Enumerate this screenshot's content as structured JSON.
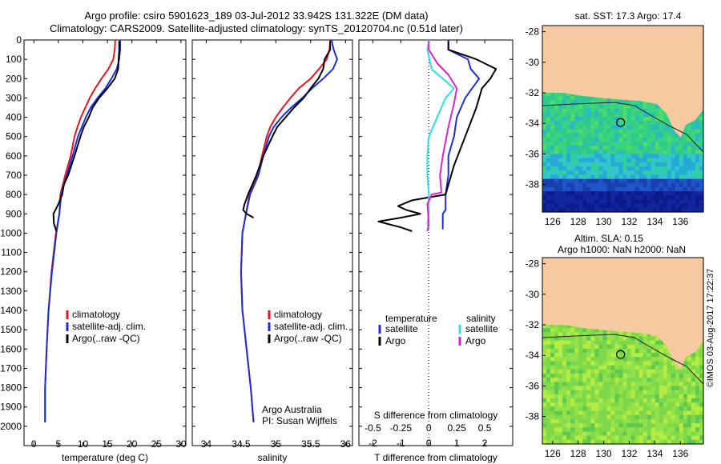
{
  "header": {
    "line1": "Argo profile: csiro 5901623_189 03-Jul-2012 33.942S 131.322E (DM data)",
    "line2": "Climatology: CARS2009. Satellite-adjusted climatology: synTS_20120704.nc (0.51d later)"
  },
  "side_label": "©IMOS 03-Aug-2017 17:22:37",
  "colors": {
    "climatology": "#e8141e",
    "satellite": "#1c2fd8",
    "argo": "#000000",
    "s_satellite": "#29e0e6",
    "s_argo": "#e020d0",
    "land": "#f7c9a0"
  },
  "maps": [
    {
      "title": "sat. SST: 17.3 Argo: 17.4",
      "colormap": "sst",
      "yticks": [
        "-28",
        "-30",
        "-32",
        "-34",
        "-36",
        "-38"
      ],
      "xticks": [
        "126",
        "128",
        "130",
        "132",
        "134",
        "136"
      ]
    },
    {
      "title": "Altim. SLA: 0.15",
      "title2": "Argo h1000: NaN h2000: NaN",
      "colormap": "sla",
      "yticks": [
        "-28",
        "-30",
        "-32",
        "-34",
        "-36",
        "-38"
      ],
      "xticks": [
        "126",
        "128",
        "130",
        "132",
        "134",
        "136"
      ]
    }
  ],
  "chart_data": [
    {
      "type": "line",
      "xlabel": "temperature (deg C)",
      "ylabel": "",
      "xlim": [
        -2,
        31
      ],
      "ylim": [
        0,
        2100
      ],
      "xticks": [
        "0",
        "5",
        "10",
        "15",
        "20",
        "25",
        "30"
      ],
      "yticks": [
        "0",
        "100",
        "200",
        "300",
        "400",
        "500",
        "600",
        "700",
        "800",
        "900",
        "1000",
        "1100",
        "1200",
        "1300",
        "1400",
        "1500",
        "1600",
        "1700",
        "1800",
        "1900",
        "2000"
      ],
      "legend": [
        "climatology",
        "satellite-adj. clim.",
        "Argo(..raw -QC)"
      ],
      "series": [
        {
          "name": "climatology",
          "x": [
            16.6,
            16.5,
            16.2,
            15.2,
            13.8,
            12.5,
            11.4,
            10.5,
            9.6,
            8.9,
            8.3,
            7.5,
            6.4,
            5.4,
            5.2,
            4.5,
            3.6,
            3.0,
            2.6,
            2.3,
            2.3
          ],
          "y": [
            0,
            50,
            100,
            150,
            200,
            250,
            300,
            350,
            400,
            450,
            500,
            600,
            700,
            800,
            900,
            1000,
            1200,
            1400,
            1600,
            1800,
            1980
          ]
        },
        {
          "name": "satellite-adj. clim.",
          "x": [
            17.6,
            17.6,
            17.4,
            16.9,
            15.8,
            14.6,
            13.0,
            11.6,
            10.6,
            9.8,
            9.0,
            7.9,
            6.7,
            5.6,
            5.2,
            4.6,
            3.7,
            3.0,
            2.6,
            2.3,
            2.3
          ],
          "y": [
            0,
            50,
            100,
            150,
            200,
            250,
            300,
            350,
            400,
            450,
            500,
            600,
            700,
            800,
            900,
            1000,
            1200,
            1400,
            1600,
            1800,
            1980
          ]
        },
        {
          "name": "Argo(..raw -QC)",
          "x": [
            17.4,
            17.4,
            17.3,
            17.2,
            16.5,
            15.0,
            13.3,
            12.0,
            11.2,
            10.2,
            9.5,
            8.3,
            7.0,
            6.1,
            5.8,
            5.0,
            4.0,
            4.1,
            4.6
          ],
          "y": [
            5,
            50,
            100,
            150,
            200,
            250,
            300,
            350,
            400,
            450,
            500,
            600,
            700,
            750,
            800,
            850,
            900,
            950,
            990
          ]
        }
      ]
    },
    {
      "type": "line",
      "xlabel": "salinity",
      "ylabel": "",
      "xlim": [
        33.8,
        36.1
      ],
      "ylim": [
        0,
        2100
      ],
      "xticks": [
        "34",
        "34.5",
        "35",
        "35.5",
        "36"
      ],
      "legend": [
        "climatology",
        "satellite-adj. clim.",
        "Argo(..raw -QC)"
      ],
      "annotation": [
        "Argo Australia",
        "PI: Susan Wijffels"
      ],
      "series": [
        {
          "name": "climatology",
          "x": [
            35.78,
            35.77,
            35.73,
            35.62,
            35.5,
            35.33,
            35.21,
            35.1,
            35.0,
            34.92,
            34.87,
            34.8,
            34.74,
            34.62,
            34.57,
            34.52,
            34.5,
            34.52,
            34.58,
            34.64,
            34.68
          ],
          "y": [
            0,
            50,
            100,
            150,
            200,
            250,
            300,
            350,
            400,
            450,
            500,
            600,
            700,
            800,
            900,
            1000,
            1200,
            1400,
            1600,
            1800,
            1980
          ]
        },
        {
          "name": "satellite-adj. clim.",
          "x": [
            35.8,
            35.83,
            35.88,
            35.82,
            35.68,
            35.52,
            35.38,
            35.22,
            35.08,
            34.97,
            34.9,
            34.82,
            34.75,
            34.63,
            34.57,
            34.52,
            34.5,
            34.52,
            34.58,
            34.64,
            34.68
          ],
          "y": [
            0,
            50,
            100,
            150,
            200,
            250,
            300,
            350,
            400,
            450,
            500,
            600,
            700,
            800,
            900,
            1000,
            1200,
            1400,
            1600,
            1800,
            1980
          ]
        },
        {
          "name": "Argo(..raw -QC)",
          "x": [
            35.78,
            35.78,
            35.7,
            35.68,
            35.61,
            35.5,
            35.4,
            35.26,
            35.14,
            35.02,
            34.95,
            34.82,
            34.72,
            34.6,
            34.55,
            34.53,
            34.58,
            34.68
          ],
          "y": [
            5,
            50,
            100,
            150,
            200,
            250,
            300,
            350,
            400,
            450,
            500,
            600,
            700,
            800,
            850,
            880,
            900,
            920
          ]
        }
      ]
    },
    {
      "type": "line",
      "xlabel": "T difference from climatology",
      "title_bottom": "S difference from climatology",
      "xlim": [
        -2.5,
        3.0
      ],
      "ylim": [
        0,
        2100
      ],
      "xticks": [
        "-2",
        "-1",
        "0",
        "1",
        "2"
      ],
      "xticks_top": [
        "-0.5",
        "-0.25",
        "0",
        "0.25",
        "0.5"
      ],
      "legend_headers": [
        "temperature",
        "salinity"
      ],
      "legend": [
        "satellite",
        "Argo",
        "satellite",
        "Argo"
      ],
      "series": [
        {
          "name": "satellite",
          "x": [
            0.7,
            0.7,
            1.4,
            1.5,
            1.8,
            1.3,
            1.0,
            0.9,
            0.7,
            0.7,
            0.6,
            0.6,
            0.6,
            0.5,
            0.5,
            0.5
          ],
          "y": [
            0,
            50,
            100,
            150,
            200,
            300,
            400,
            500,
            600,
            700,
            800,
            850,
            880,
            900,
            950,
            980
          ]
        },
        {
          "name": "Argo",
          "x": [
            0.7,
            0.7,
            1.7,
            2.4,
            2.2,
            1.9,
            1.7,
            1.3,
            0.9,
            0.6,
            -0.6,
            -1.1,
            -0.8,
            -0.3,
            -1.0,
            -1.8,
            -1.0,
            -0.6
          ],
          "y": [
            5,
            50,
            100,
            150,
            200,
            250,
            350,
            500,
            650,
            800,
            830,
            860,
            880,
            900,
            920,
            940,
            970,
            990
          ]
        },
        {
          "name": "satellite",
          "x": [
            0,
            -0.05,
            0.1,
            0.9,
            0.6,
            0.3,
            0,
            -0.05,
            -0.05,
            0,
            0,
            0,
            -0.05,
            0
          ],
          "y": [
            0,
            50,
            150,
            250,
            300,
            400,
            500,
            600,
            700,
            800,
            850,
            900,
            950,
            980
          ]
        },
        {
          "name": "Argo",
          "x": [
            0,
            0,
            0.3,
            0.7,
            1.0,
            0.9,
            0.7,
            0.5,
            0.4,
            0.45,
            0.1,
            -0.05,
            0,
            -0.05
          ],
          "y": [
            5,
            50,
            120,
            180,
            250,
            330,
            450,
            600,
            700,
            790,
            800,
            850,
            950,
            990
          ]
        }
      ]
    }
  ]
}
